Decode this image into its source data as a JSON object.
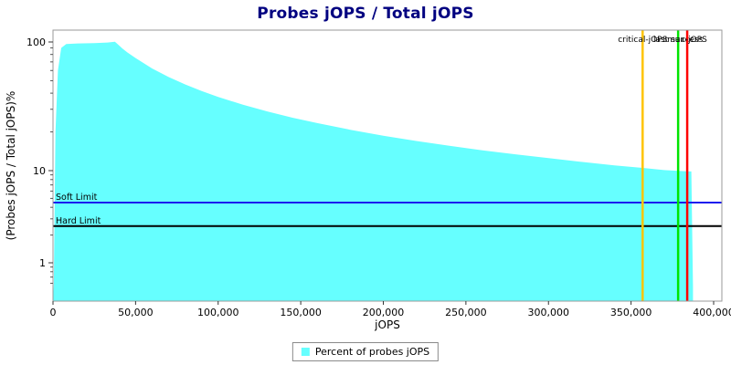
{
  "chart_data": {
    "type": "area",
    "title": "Probes jOPS / Total jOPS",
    "xlabel": "jOPS",
    "ylabel": "(Probes jOPS / Total jOPS)%",
    "x_scale": "linear",
    "y_scale": "log",
    "xlim": [
      0,
      405000
    ],
    "ylim": [
      0.55,
      120
    ],
    "grid": false,
    "legend_position": "bottom",
    "x_ticks": [
      {
        "value": 0,
        "label": "0"
      },
      {
        "value": 50000,
        "label": "50,000"
      },
      {
        "value": 100000,
        "label": "100,000"
      },
      {
        "value": 150000,
        "label": "150,000"
      },
      {
        "value": 200000,
        "label": "200,000"
      },
      {
        "value": 250000,
        "label": "250,000"
      },
      {
        "value": 300000,
        "label": "300,000"
      },
      {
        "value": 350000,
        "label": "350,000"
      },
      {
        "value": 400000,
        "label": "400,000"
      }
    ],
    "y_ticks": [
      {
        "value": 100,
        "label": "100"
      },
      {
        "value": 10,
        "label": "10"
      },
      {
        "value": 1,
        "label": "1"
      }
    ],
    "series": [
      {
        "name": "Percent of probes jOPS",
        "color": "#66FFFF",
        "points": [
          [
            500,
            0.6
          ],
          [
            1500,
            20
          ],
          [
            3000,
            60
          ],
          [
            5000,
            90
          ],
          [
            8000,
            96.5
          ],
          [
            15000,
            97.5
          ],
          [
            25000,
            98
          ],
          [
            33000,
            99
          ],
          [
            37500,
            100.5
          ],
          [
            42000,
            89
          ],
          [
            45000,
            83
          ],
          [
            50000,
            75
          ],
          [
            60000,
            62.3
          ],
          [
            70000,
            53.4
          ],
          [
            80000,
            46.8
          ],
          [
            90000,
            41.6
          ],
          [
            100000,
            37.4
          ],
          [
            115000,
            32.5
          ],
          [
            130000,
            28.8
          ],
          [
            145000,
            25.8
          ],
          [
            160000,
            23.4
          ],
          [
            180000,
            20.8
          ],
          [
            200000,
            18.7
          ],
          [
            220000,
            17.0
          ],
          [
            240000,
            15.6
          ],
          [
            260000,
            14.4
          ],
          [
            280000,
            13.4
          ],
          [
            300000,
            12.5
          ],
          [
            320000,
            11.7
          ],
          [
            340000,
            11.0
          ],
          [
            357000,
            10.5
          ],
          [
            370000,
            10.1
          ],
          [
            378500,
            9.95
          ],
          [
            384000,
            9.85
          ],
          [
            386500,
            9.8
          ],
          [
            387500,
            0.55
          ]
        ]
      }
    ],
    "h_markers": [
      {
        "label": "Soft Limit",
        "value": 4.5,
        "color": "#1A1AEE"
      },
      {
        "label": "Hard Limit",
        "value": 2.5,
        "color": "#000000"
      }
    ],
    "v_markers": [
      {
        "label": "critical-jOPS",
        "value": 357000,
        "color": "#FFC400"
      },
      {
        "label": "last success",
        "value": 378500,
        "color": "#00E400"
      },
      {
        "label": "max-jOPS",
        "value": 384000,
        "color": "#FF0000"
      }
    ]
  },
  "legend": {
    "items": [
      {
        "label": "Percent of probes jOPS",
        "color": "#66FFFF"
      }
    ]
  }
}
